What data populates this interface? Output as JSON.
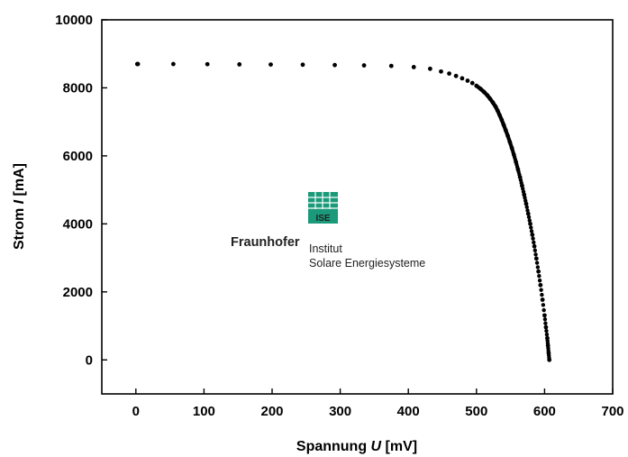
{
  "chart_data": {
    "type": "scatter",
    "title": "",
    "xlabel": {
      "prefix": "Spannung ",
      "italic": "U",
      "suffix": " [mV]"
    },
    "ylabel": {
      "prefix": "Strom ",
      "italic": "I",
      "suffix": " [mA]"
    },
    "xlim": [
      -50,
      700
    ],
    "ylim": [
      -1000,
      10000
    ],
    "xticks": [
      0,
      100,
      200,
      300,
      400,
      500,
      600,
      700
    ],
    "yticks": [
      0,
      2000,
      4000,
      6000,
      8000,
      10000
    ],
    "grid": false,
    "legend": "none",
    "marker_color": "#000000",
    "series": [
      {
        "x": [
          2,
          3,
          55,
          105,
          152,
          198,
          245,
          292,
          335,
          375,
          408,
          432,
          448,
          460,
          470,
          479,
          487,
          494,
          500,
          506,
          511,
          516,
          520,
          524,
          528,
          531,
          534,
          537,
          540,
          543,
          546,
          549,
          552,
          555,
          558,
          561,
          564,
          567,
          570,
          573,
          576,
          579,
          582,
          585,
          588,
          591,
          594,
          597,
          600,
          602,
          604,
          605,
          606,
          607
        ],
        "y": [
          8700,
          8700,
          8700,
          8695,
          8690,
          8685,
          8680,
          8670,
          8660,
          8645,
          8610,
          8560,
          8480,
          8420,
          8350,
          8280,
          8210,
          8140,
          8060,
          7970,
          7880,
          7780,
          7680,
          7570,
          7450,
          7330,
          7200,
          7060,
          6910,
          6750,
          6590,
          6410,
          6230,
          6030,
          5820,
          5600,
          5370,
          5120,
          4860,
          4590,
          4300,
          4000,
          3680,
          3340,
          2980,
          2600,
          2200,
          1770,
          1310,
          960,
          640,
          420,
          200,
          0
        ]
      }
    ]
  },
  "logo": {
    "badge": "ISE",
    "name": "Fraunhofer",
    "line1": "Institut",
    "line2": "Solare Energiesysteme",
    "color": "#1a9a7a"
  }
}
